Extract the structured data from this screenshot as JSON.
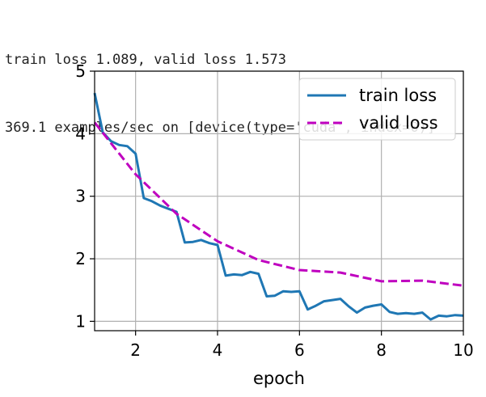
{
  "console": {
    "line1": "train loss 1.089, valid loss 1.573",
    "line2": "369.1 examples/sec on [device(type='cuda', index=0)]"
  },
  "chart_data": {
    "type": "line",
    "xlabel": "epoch",
    "ylabel": "",
    "xlim": [
      1,
      10
    ],
    "ylim": [
      0.85,
      5.0
    ],
    "xticks": [
      2,
      4,
      6,
      8,
      10
    ],
    "yticks": [
      1,
      2,
      3,
      4,
      5
    ],
    "grid": true,
    "legend_position": "top-right",
    "series": [
      {
        "name": "train loss",
        "color": "#1f77b4",
        "style": "solid",
        "x": [
          1.0,
          1.2,
          1.4,
          1.6,
          1.8,
          2.0,
          2.2,
          2.4,
          2.6,
          2.8,
          3.0,
          3.2,
          3.4,
          3.6,
          3.8,
          4.0,
          4.2,
          4.4,
          4.6,
          4.8,
          5.0,
          5.2,
          5.4,
          5.6,
          5.8,
          6.0,
          6.2,
          6.4,
          6.6,
          6.8,
          7.0,
          7.2,
          7.4,
          7.6,
          7.8,
          8.0,
          8.2,
          8.4,
          8.6,
          8.8,
          9.0,
          9.2,
          9.4,
          9.6,
          9.8,
          10.0
        ],
        "y": [
          4.65,
          4.02,
          3.88,
          3.82,
          3.8,
          3.68,
          2.97,
          2.92,
          2.85,
          2.8,
          2.75,
          2.26,
          2.27,
          2.3,
          2.25,
          2.22,
          1.73,
          1.75,
          1.74,
          1.79,
          1.76,
          1.4,
          1.41,
          1.48,
          1.47,
          1.48,
          1.19,
          1.25,
          1.32,
          1.34,
          1.36,
          1.24,
          1.14,
          1.22,
          1.25,
          1.27,
          1.15,
          1.12,
          1.13,
          1.12,
          1.14,
          1.03,
          1.09,
          1.08,
          1.1,
          1.09
        ]
      },
      {
        "name": "valid loss",
        "color": "#bf00bf",
        "style": "dashed",
        "x": [
          1,
          2,
          3,
          4,
          5,
          6,
          7,
          8,
          9,
          10
        ],
        "y": [
          4.18,
          3.35,
          2.72,
          2.28,
          1.98,
          1.82,
          1.78,
          1.64,
          1.65,
          1.57
        ]
      }
    ]
  }
}
